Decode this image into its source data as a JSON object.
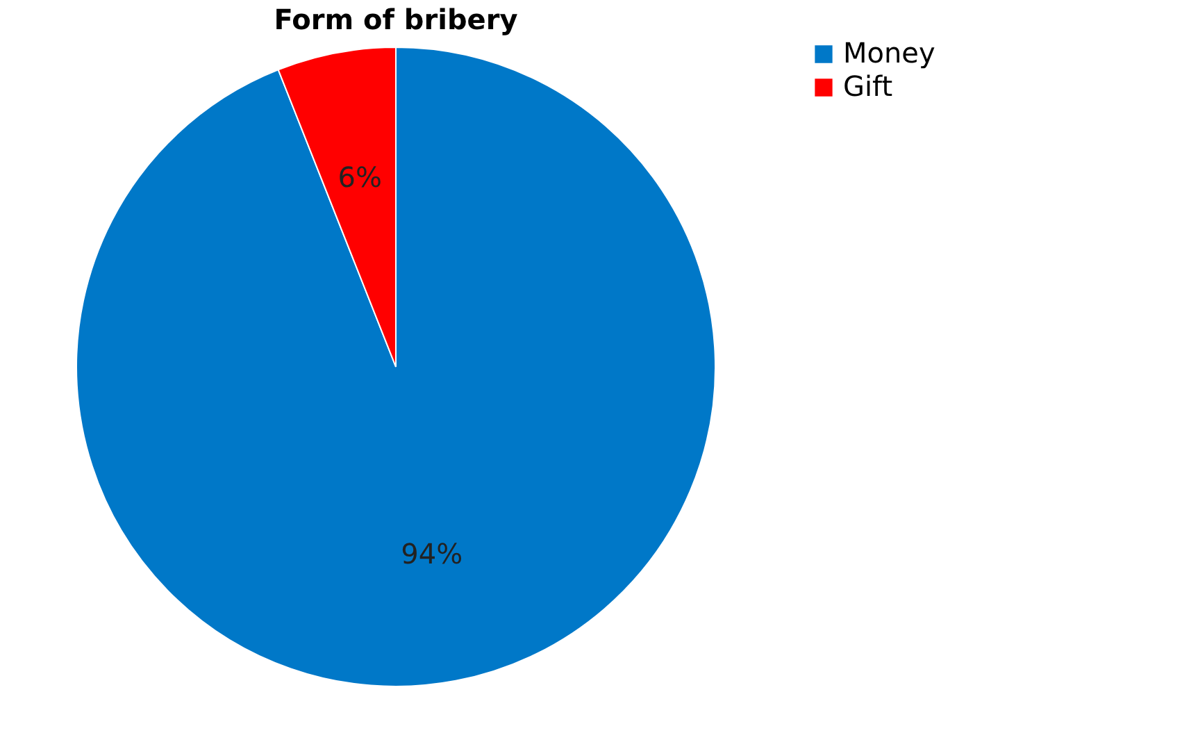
{
  "chart_data": {
    "type": "pie",
    "title": "Form of bribery",
    "categories": [
      "Money",
      "Gift"
    ],
    "values": [
      94,
      6
    ],
    "colors": [
      "#0078c8",
      "#ff0000"
    ],
    "value_labels": [
      "94%",
      "6%"
    ],
    "legend": "right"
  }
}
